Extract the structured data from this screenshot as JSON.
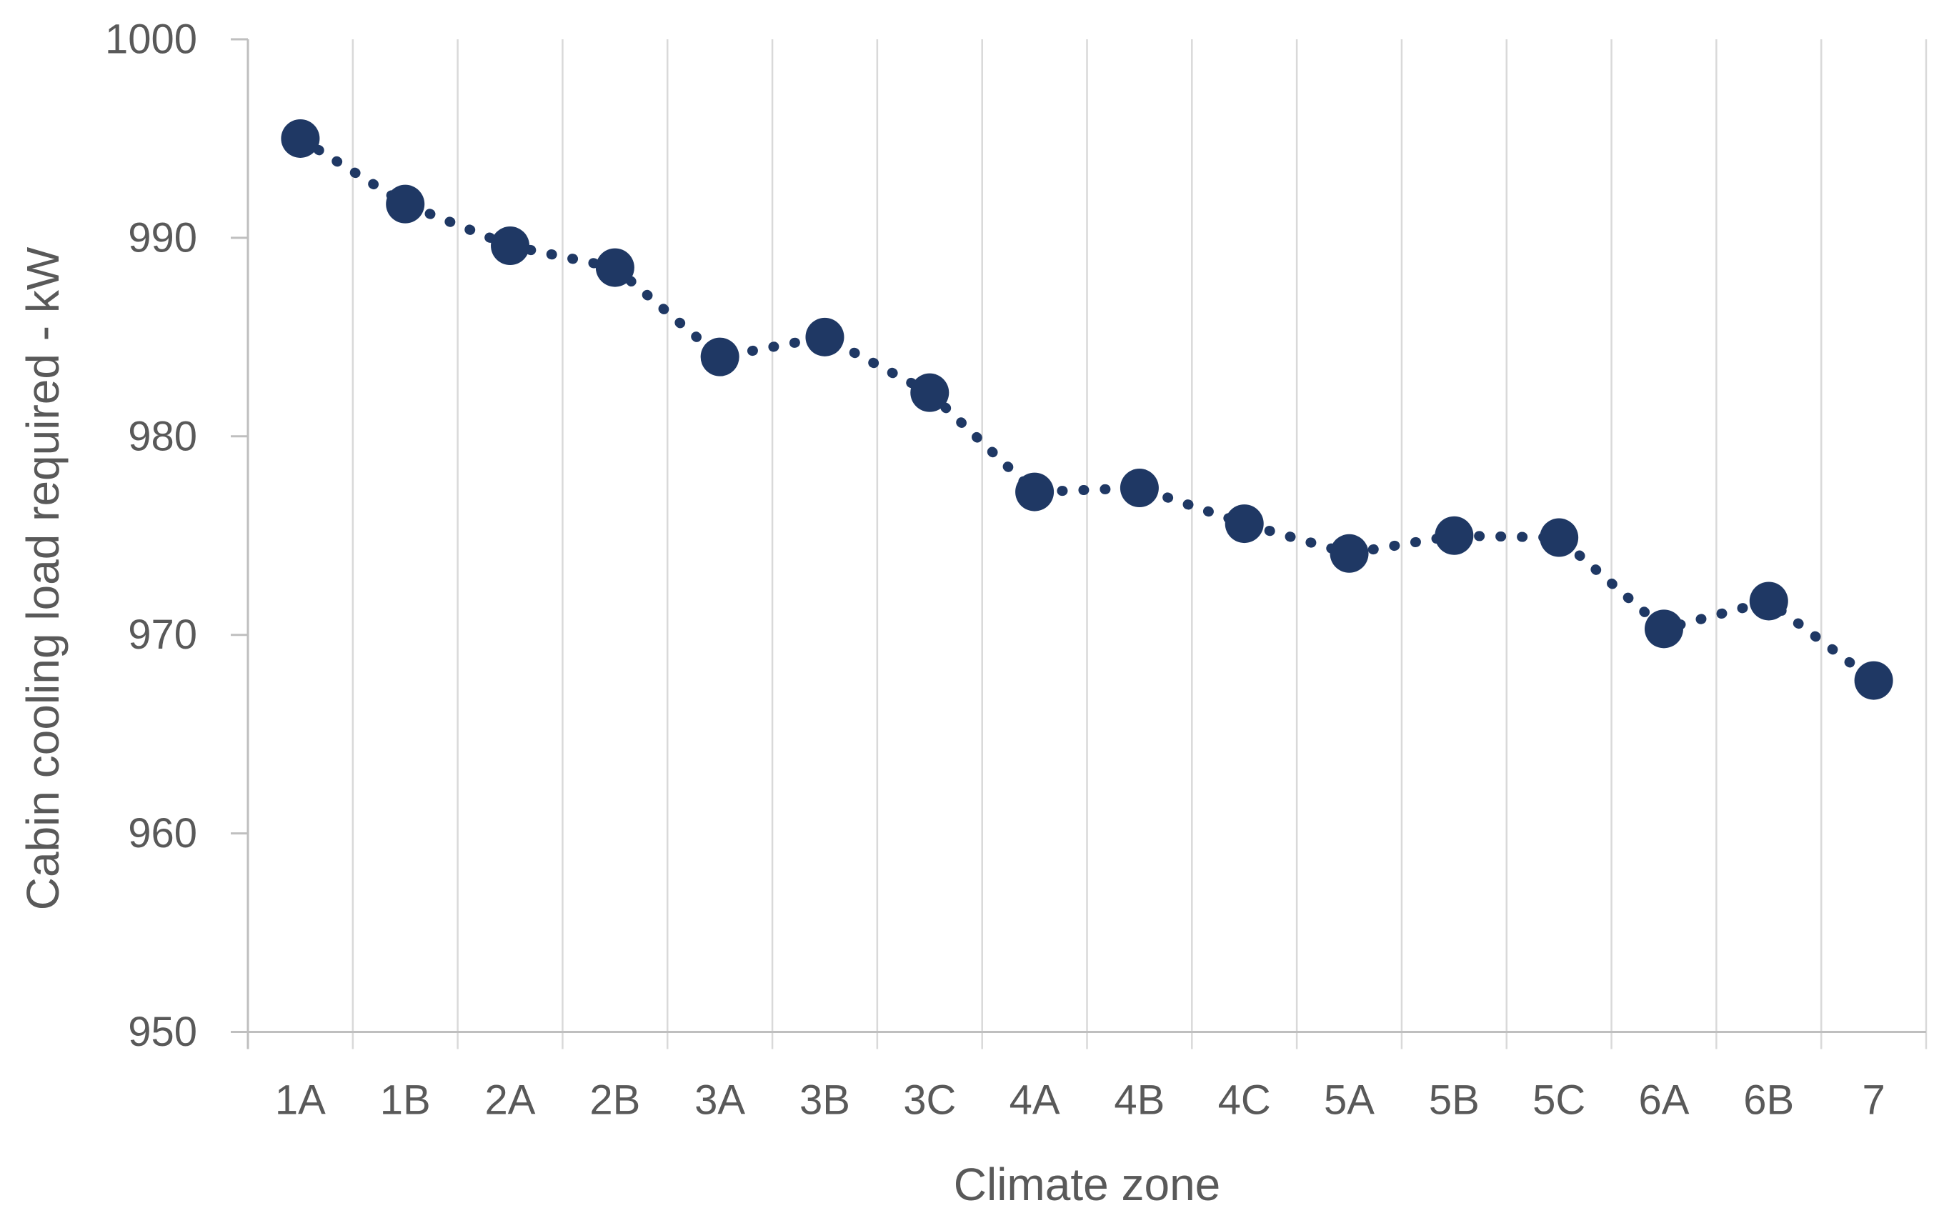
{
  "chart_data": {
    "type": "line",
    "title": "",
    "xlabel": "Climate zone",
    "ylabel": "Cabin cooling load required - kW",
    "categories": [
      "1A",
      "1B",
      "2A",
      "2B",
      "3A",
      "3B",
      "3C",
      "4A",
      "4B",
      "4C",
      "5A",
      "5B",
      "5C",
      "6A",
      "6B",
      "7"
    ],
    "series": [
      {
        "name": "Cabin cooling load required",
        "values": [
          995.0,
          991.7,
          989.6,
          988.5,
          984.0,
          985.0,
          982.2,
          977.2,
          977.4,
          975.6,
          974.1,
          975.0,
          974.9,
          970.3,
          971.7,
          967.7
        ]
      }
    ],
    "ylim": [
      950,
      1000
    ],
    "yticks": [
      950,
      960,
      970,
      980,
      990,
      1000
    ],
    "grid": "vertical-only",
    "legend": "none",
    "marker_style": "filled-circle",
    "line_style": "dotted"
  },
  "style": {
    "series_color": "#1F3864",
    "gridline_color": "#D9D9D9",
    "axis_color": "#BFBFBF",
    "label_color": "#595959",
    "background": "#FFFFFF"
  }
}
